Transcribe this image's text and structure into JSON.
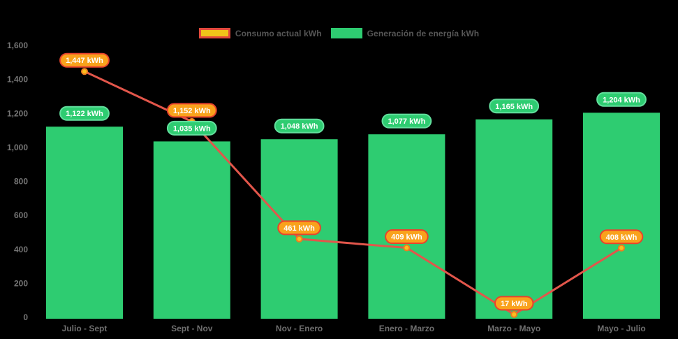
{
  "legend": {
    "items": [
      {
        "label": "Consumo actual kWh",
        "swatch_fill": "#f0c419",
        "swatch_border": "#e2493b"
      },
      {
        "label": "Generación de energía kWh",
        "swatch_fill": "#2ecc71",
        "swatch_border": "#2ecc71"
      }
    ]
  },
  "chart_data": {
    "type": "combo",
    "title": "",
    "categories": [
      "Julio - Sept",
      "Sept - Nov",
      "Nov - Enero",
      "Enero - Marzo",
      "Marzo - Mayo",
      "Mayo - Julio"
    ],
    "series": [
      {
        "name": "Generación de energía kWh",
        "type": "bar",
        "color": "#2ecc71",
        "values": [
          1122,
          1035,
          1048,
          1077,
          1165,
          1204
        ],
        "labels": [
          "1,122 kWh",
          "1,035 kWh",
          "1,048 kWh",
          "1,077 kWh",
          "1,165 kWh",
          "1,204 kWh"
        ],
        "label_style": {
          "fill": "#2ecc71",
          "border": "#62df9d",
          "text": "#ffffff"
        }
      },
      {
        "name": "Consumo actual kWh",
        "type": "line",
        "color": "#e2564b",
        "values": [
          1447,
          1152,
          461,
          409,
          17,
          408
        ],
        "labels": [
          "1,447 kWh",
          "1,152 kWh",
          "461 kWh",
          "409 kWh",
          "17 kWh",
          "408 kWh"
        ],
        "marker": {
          "fill": "#fcbf1e",
          "stroke": "#ef7d1f"
        },
        "label_style": {
          "fill": "#f9a21c",
          "border": "#e8432d",
          "text": "#ffffff"
        }
      }
    ],
    "ylim": [
      0,
      1600
    ],
    "ytick_step": 200,
    "ytick_labels": [
      "0",
      "200",
      "400",
      "600",
      "800",
      "1,000",
      "1,200",
      "1,400",
      "1,600"
    ],
    "grid": false,
    "legend_position": "top",
    "background": "#000000",
    "axis_text_color": "#6f6f6f"
  }
}
